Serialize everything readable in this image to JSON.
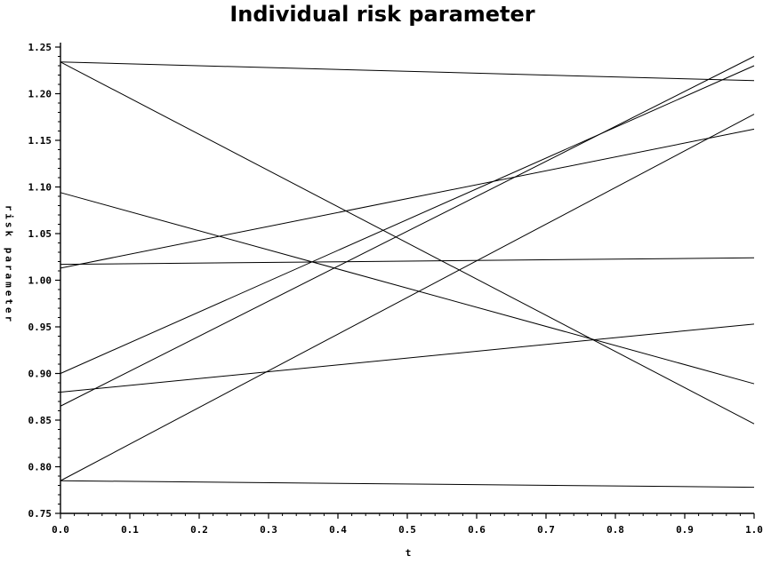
{
  "chart_data": {
    "type": "line",
    "title": "Individual risk parameter",
    "xlabel": "t",
    "ylabel": "risk parameter",
    "xlim": [
      0.0,
      1.0
    ],
    "ylim": [
      0.75,
      1.25
    ],
    "x_ticks": [
      "0.0",
      "0.1",
      "0.2",
      "0.3",
      "0.4",
      "0.5",
      "0.6",
      "0.7",
      "0.8",
      "0.9",
      "1.0"
    ],
    "y_ticks": [
      "0.75",
      "0.80",
      "0.85",
      "0.90",
      "0.95",
      "1.00",
      "1.05",
      "1.10",
      "1.15",
      "1.20",
      "1.25"
    ],
    "grid": false,
    "legend": "none",
    "series": [
      {
        "x": [
          0.0,
          1.0
        ],
        "y": [
          1.234,
          1.214
        ]
      },
      {
        "x": [
          0.0,
          1.0
        ],
        "y": [
          1.234,
          0.846
        ]
      },
      {
        "x": [
          0.0,
          1.0
        ],
        "y": [
          1.094,
          0.889
        ]
      },
      {
        "x": [
          0.0,
          1.0
        ],
        "y": [
          1.013,
          1.162
        ]
      },
      {
        "x": [
          0.0,
          1.0
        ],
        "y": [
          1.017,
          1.024
        ]
      },
      {
        "x": [
          0.0,
          1.0
        ],
        "y": [
          0.9,
          1.23
        ]
      },
      {
        "x": [
          0.0,
          1.0
        ],
        "y": [
          0.865,
          1.24
        ]
      },
      {
        "x": [
          0.0,
          1.0
        ],
        "y": [
          0.88,
          0.953
        ]
      },
      {
        "x": [
          0.0,
          1.0
        ],
        "y": [
          0.785,
          1.178
        ]
      },
      {
        "x": [
          0.0,
          1.0
        ],
        "y": [
          0.785,
          0.778
        ]
      }
    ]
  }
}
